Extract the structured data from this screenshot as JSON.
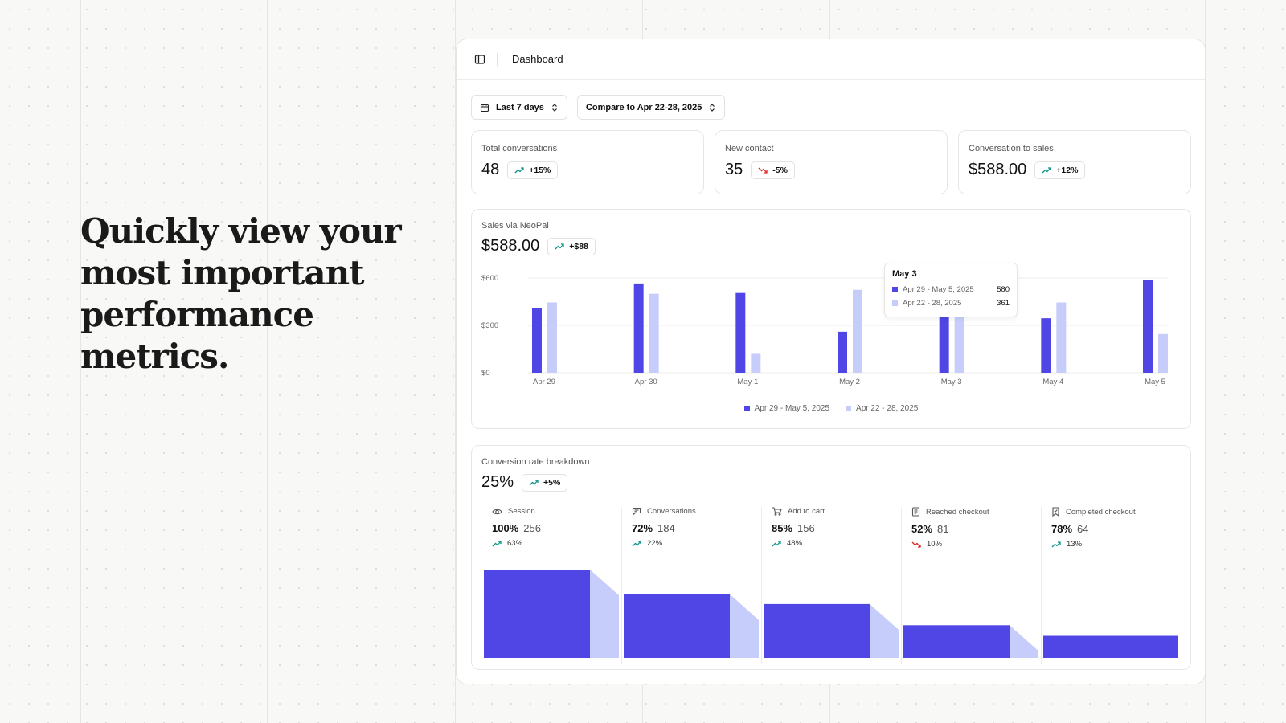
{
  "hero": {
    "headline": "Quickly view your most important performance metrics."
  },
  "app": {
    "title": "Dashboard"
  },
  "filters": {
    "range_label": "Last 7 days",
    "compare_label": "Compare to Apr 22-28, 2025"
  },
  "kpis": [
    {
      "label": "Total conversations",
      "value": "48",
      "delta": "+15%",
      "trend": "up"
    },
    {
      "label": "New contact",
      "value": "35",
      "delta": "-5%",
      "trend": "down"
    },
    {
      "label": "Conversation to sales",
      "value": "$588.00",
      "delta": "+12%",
      "trend": "up"
    }
  ],
  "sales": {
    "label": "Sales via NeoPal",
    "value": "$588.00",
    "delta": "+$88"
  },
  "tooltip": {
    "title": "May 3",
    "rows": [
      {
        "label": "Apr 29 - May 5, 2025",
        "value": "580"
      },
      {
        "label": "Apr 22 - 28, 2025",
        "value": "361"
      }
    ]
  },
  "chart_data": {
    "type": "bar",
    "categories": [
      "Apr 29",
      "Apr 30",
      "May 1",
      "May 2",
      "May 3",
      "May 4",
      "May 5"
    ],
    "series": [
      {
        "name": "Apr 29 - May 5, 2025",
        "values": [
          410,
          565,
          505,
          260,
          580,
          345,
          585
        ],
        "color": "#4f46e5"
      },
      {
        "name": "Apr 22 - 28, 2025",
        "values": [
          445,
          500,
          120,
          525,
          361,
          445,
          245
        ],
        "color": "#c7cdfb"
      }
    ],
    "ylim": [
      0,
      600
    ],
    "yticks": [
      0,
      300,
      600
    ],
    "ytick_labels": [
      "$0",
      "$300",
      "$600"
    ],
    "grid": true,
    "legend": "bottom-center"
  },
  "conversion": {
    "label": "Conversion rate breakdown",
    "value": "25%",
    "delta": "+5%",
    "stages": [
      {
        "label": "Session",
        "icon": "eye-icon",
        "pct": "100%",
        "count": "256",
        "trend": "up",
        "trend_value": "63%",
        "level": 1.0,
        "next_level": 0.72
      },
      {
        "label": "Conversations",
        "icon": "message-icon",
        "pct": "72%",
        "count": "184",
        "trend": "up",
        "trend_value": "22%",
        "level": 0.72,
        "next_level": 0.61
      },
      {
        "label": "Add to cart",
        "icon": "cart-icon",
        "pct": "85%",
        "count": "156",
        "trend": "up",
        "trend_value": "48%",
        "level": 0.61,
        "next_level": 0.37
      },
      {
        "label": "Reached checkout",
        "icon": "receipt-icon",
        "pct": "52%",
        "count": "81",
        "trend": "down",
        "trend_value": "10%",
        "level": 0.37,
        "next_level": 0.25
      },
      {
        "label": "Completed checkout",
        "icon": "bookmark-check-icon",
        "pct": "78%",
        "count": "64",
        "trend": "up",
        "trend_value": "13%",
        "level": 0.25,
        "next_level": null
      }
    ]
  },
  "colors": {
    "primary": "#4f46e5",
    "secondary": "#c7cdfb",
    "up": "#0d9488",
    "down": "#dc2626"
  }
}
